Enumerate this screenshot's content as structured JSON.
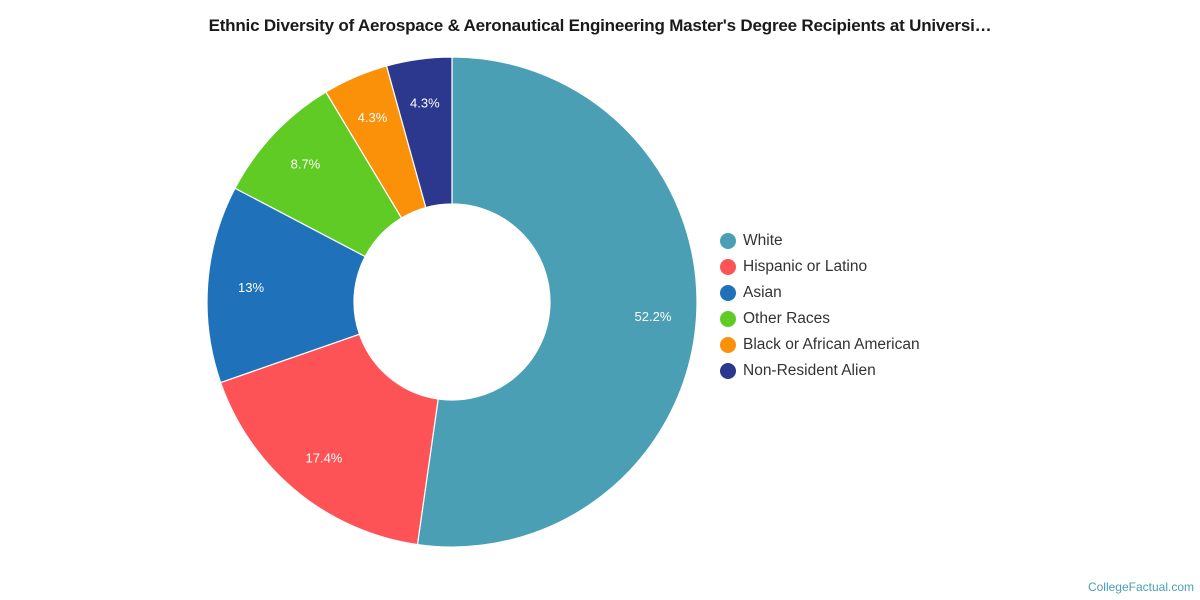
{
  "chart_data": {
    "type": "pie",
    "variant": "donut",
    "title": "Ethnic Diversity of Aerospace & Aeronautical Engineering Master's Degree Recipients at Universi…",
    "categories": [
      "White",
      "Hispanic or Latino",
      "Asian",
      "Other Races",
      "Black or African American",
      "Non-Resident Alien"
    ],
    "values": [
      52.2,
      17.4,
      13,
      8.7,
      4.3,
      4.3
    ],
    "labels": [
      "52.2%",
      "17.4%",
      "13%",
      "8.7%",
      "4.3%",
      "4.3%"
    ],
    "colors": [
      "#4a9fb5",
      "#fe5356",
      "#1f72ba",
      "#60cb24",
      "#fb9009",
      "#2b388e"
    ],
    "legend_position": "right",
    "unit": "%"
  },
  "legend": {
    "items": [
      {
        "label": "White",
        "color": "#4a9fb5"
      },
      {
        "label": "Hispanic or Latino",
        "color": "#fe5356"
      },
      {
        "label": "Asian",
        "color": "#1f72ba"
      },
      {
        "label": "Other Races",
        "color": "#60cb24"
      },
      {
        "label": "Black or African American",
        "color": "#fb9009"
      },
      {
        "label": "Non-Resident Alien",
        "color": "#2b388e"
      }
    ]
  },
  "credit": "CollegeFactual.com"
}
